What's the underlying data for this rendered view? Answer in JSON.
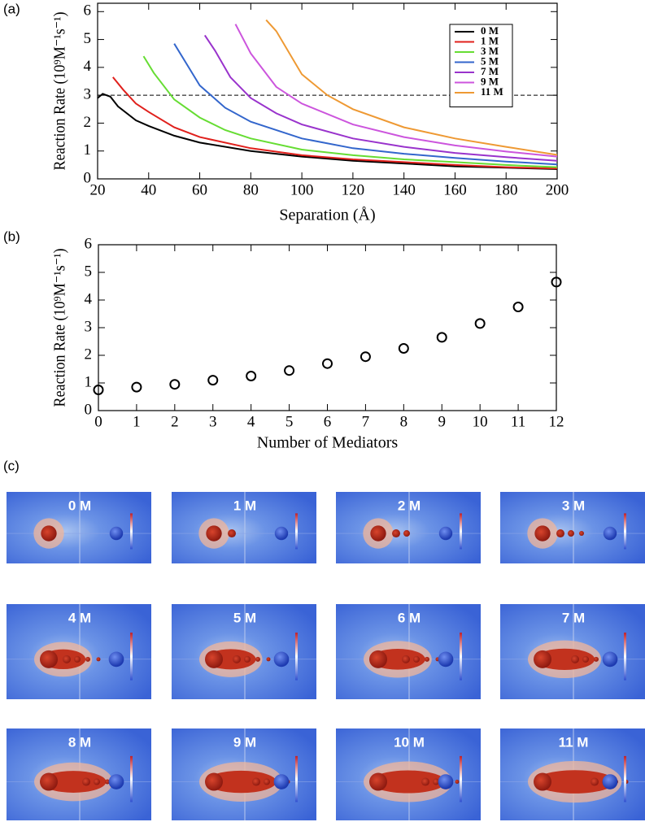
{
  "chart_data": [
    {
      "type": "line",
      "panel_label": "(a)",
      "x_label": "Separation (Å)",
      "y_label": "Reaction Rate (10⁹M⁻¹s⁻¹)",
      "xlim": [
        20,
        200
      ],
      "ylim": [
        0,
        6.3
      ],
      "xticks": [
        20,
        40,
        60,
        80,
        100,
        120,
        140,
        160,
        180,
        200
      ],
      "yticks": [
        0,
        1,
        2,
        3,
        4,
        5,
        6
      ],
      "reference_line": 3,
      "legend": "upper right",
      "series": [
        {
          "name": "0 M",
          "color": "#000000",
          "x": [
            20,
            22,
            25,
            28,
            35,
            40,
            50,
            60,
            80,
            100,
            120,
            140,
            160,
            180,
            200
          ],
          "values": [
            2.9,
            3.05,
            2.95,
            2.6,
            2.1,
            1.9,
            1.55,
            1.3,
            1.0,
            0.8,
            0.65,
            0.55,
            0.45,
            0.4,
            0.35
          ]
        },
        {
          "name": "1 M",
          "color": "#e0201c",
          "x": [
            26,
            30,
            35,
            40,
            50,
            60,
            80,
            100,
            120,
            140,
            160,
            180,
            200
          ],
          "values": [
            3.65,
            3.2,
            2.7,
            2.4,
            1.85,
            1.5,
            1.1,
            0.85,
            0.7,
            0.6,
            0.5,
            0.42,
            0.37
          ]
        },
        {
          "name": "3 M",
          "color": "#66dd33",
          "x": [
            38,
            42,
            50,
            60,
            70,
            80,
            100,
            120,
            140,
            160,
            180,
            200
          ],
          "values": [
            4.4,
            3.8,
            2.85,
            2.2,
            1.75,
            1.45,
            1.05,
            0.85,
            0.7,
            0.6,
            0.5,
            0.42
          ]
        },
        {
          "name": "5 M",
          "color": "#3366cc",
          "x": [
            50,
            55,
            60,
            70,
            80,
            100,
            120,
            140,
            160,
            180,
            200
          ],
          "values": [
            4.85,
            4.1,
            3.35,
            2.55,
            2.05,
            1.45,
            1.1,
            0.9,
            0.75,
            0.62,
            0.52
          ]
        },
        {
          "name": "7 M",
          "color": "#9933cc",
          "x": [
            62,
            66,
            72,
            80,
            90,
            100,
            120,
            140,
            160,
            180,
            200
          ],
          "values": [
            5.15,
            4.6,
            3.65,
            2.9,
            2.35,
            1.95,
            1.45,
            1.15,
            0.93,
            0.78,
            0.65
          ]
        },
        {
          "name": "9 M",
          "color": "#cc55dd",
          "x": [
            74,
            80,
            90,
            100,
            120,
            140,
            160,
            180,
            200
          ],
          "values": [
            5.55,
            4.5,
            3.3,
            2.7,
            1.95,
            1.5,
            1.2,
            0.98,
            0.8
          ]
        },
        {
          "name": "11 M",
          "color": "#ee9933",
          "x": [
            86,
            90,
            100,
            110,
            120,
            140,
            160,
            180,
            200
          ],
          "values": [
            5.7,
            5.3,
            3.75,
            3.0,
            2.5,
            1.85,
            1.45,
            1.15,
            0.86
          ]
        }
      ]
    },
    {
      "type": "scatter",
      "panel_label": "(b)",
      "x_label": "Number of Mediators",
      "y_label": "Reaction Rate (10⁹M⁻¹s⁻¹)",
      "xlim": [
        0,
        12
      ],
      "ylim": [
        0,
        6
      ],
      "xticks": [
        0,
        1,
        2,
        3,
        4,
        5,
        6,
        7,
        8,
        9,
        10,
        11,
        12
      ],
      "yticks": [
        0,
        1,
        2,
        3,
        4,
        5,
        6
      ],
      "series": [
        {
          "color": "#000000",
          "x": [
            0,
            1,
            2,
            3,
            4,
            5,
            6,
            7,
            8,
            9,
            10,
            11,
            12
          ],
          "values": [
            0.75,
            0.85,
            0.95,
            1.1,
            1.25,
            1.45,
            1.7,
            1.95,
            2.25,
            2.65,
            3.15,
            3.75,
            4.65
          ]
        }
      ]
    }
  ],
  "image_grid": {
    "panel_label": "(c)",
    "labels": [
      "0 M",
      "1 M",
      "2 M",
      "3 M",
      "4 M",
      "5 M",
      "6 M",
      "7 M",
      "8 M",
      "9 M",
      "10 M",
      "11 M"
    ]
  }
}
